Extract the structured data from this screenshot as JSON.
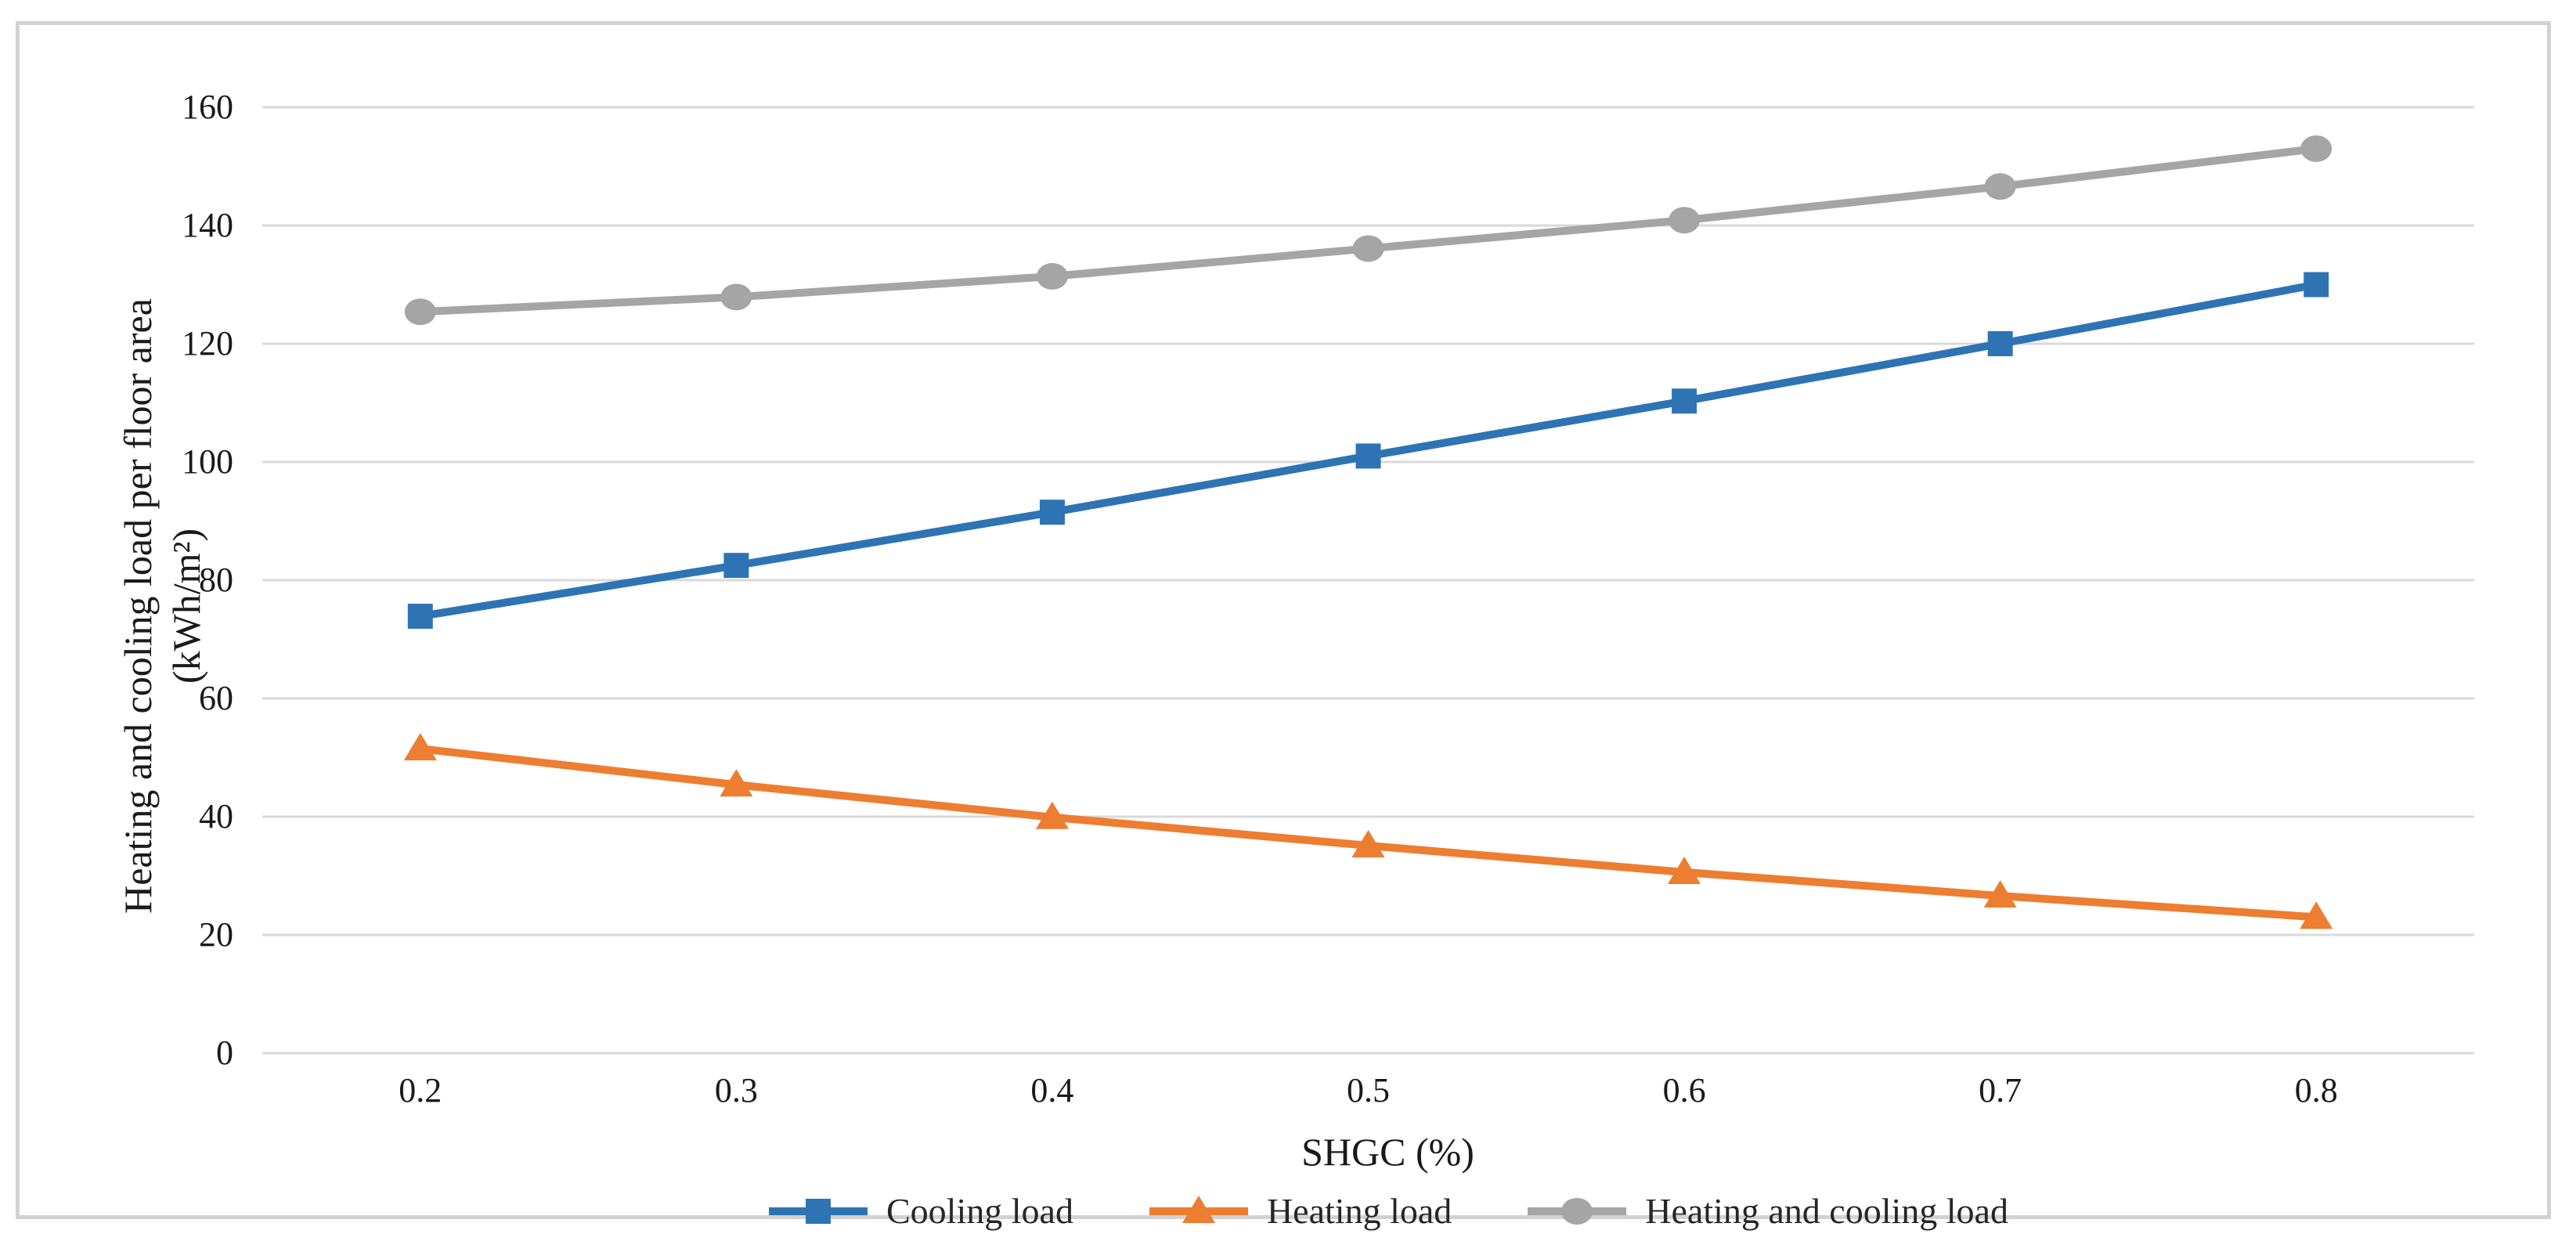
{
  "figure": {
    "background": "#ffffff",
    "frame_border_color": "#d2d2d2"
  },
  "chart_data": {
    "type": "line",
    "title": "",
    "xlabel": "SHGC (%)",
    "ylabel": "Heating and cooling load per floor area",
    "ylabel_unit": "(kWh/m²)",
    "x_tick_labels": [
      "0.2",
      "0.3",
      "0.4",
      "0.5",
      "0.6",
      "0.7",
      "0.8"
    ],
    "x": [
      0.2,
      0.3,
      0.4,
      0.5,
      0.6,
      0.7,
      0.8
    ],
    "ylim": [
      0,
      160
    ],
    "y_tick_step": 20,
    "y_tick_labels": [
      "0",
      "20",
      "40",
      "60",
      "80",
      "100",
      "120",
      "140",
      "160"
    ],
    "grid": "horizontal",
    "gridline_color": "#d9d9d9",
    "tick_label_color": "#1a1a1a",
    "legend_position": "bottom",
    "series": [
      {
        "name": "Cooling load",
        "marker": "square",
        "color": "#2e74b5",
        "values": [
          73.9,
          82.5,
          91.5,
          101.0,
          110.3,
          120.0,
          130.0
        ]
      },
      {
        "name": "Heating load",
        "marker": "triangle",
        "color": "#ed7d31",
        "values": [
          51.5,
          45.4,
          39.9,
          35.1,
          30.6,
          26.6,
          23.0
        ]
      },
      {
        "name": "Heating and cooling load",
        "marker": "circle",
        "color": "#a5a5a5",
        "values": [
          125.4,
          127.9,
          131.4,
          136.1,
          140.9,
          146.6,
          153.0
        ]
      }
    ]
  }
}
